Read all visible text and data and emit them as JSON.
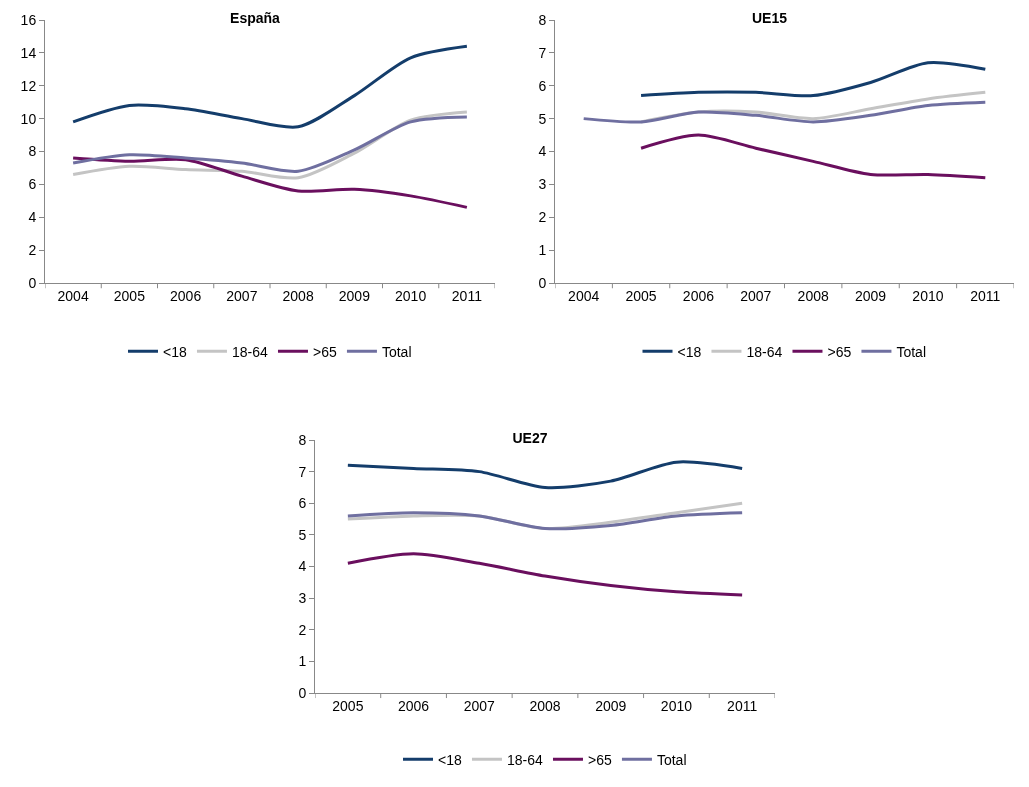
{
  "chart_data": [
    {
      "type": "line",
      "title": "España",
      "categories": [
        "2004",
        "2005",
        "2006",
        "2007",
        "2008",
        "2009",
        "2010",
        "2011"
      ],
      "ylim": [
        0,
        16
      ],
      "yticks": [
        0,
        2,
        4,
        6,
        8,
        10,
        12,
        14,
        16
      ],
      "grid": false,
      "legend": "bottom",
      "marker": "none",
      "line_style": "solid",
      "series": [
        {
          "name": "<18",
          "color": "#143d6b",
          "values": [
            9.8,
            10.8,
            10.6,
            10.0,
            9.5,
            11.4,
            13.7,
            14.4
          ]
        },
        {
          "name": "18-64",
          "color": "#c4c4c4",
          "values": [
            6.6,
            7.1,
            6.9,
            6.8,
            6.4,
            7.9,
            9.9,
            10.4
          ]
        },
        {
          "name": ">65",
          "color": "#6a0f5e",
          "values": [
            7.6,
            7.4,
            7.5,
            6.5,
            5.6,
            5.7,
            5.3,
            4.6
          ]
        },
        {
          "name": "Total",
          "color": "#6f6fa0",
          "values": [
            7.3,
            7.8,
            7.6,
            7.3,
            6.8,
            8.1,
            9.8,
            10.1
          ]
        }
      ]
    },
    {
      "type": "line",
      "title": "UE15",
      "categories": [
        "2004",
        "2005",
        "2006",
        "2007",
        "2008",
        "2009",
        "2010",
        "2011"
      ],
      "ylim": [
        0,
        8
      ],
      "yticks": [
        0,
        1,
        2,
        3,
        4,
        5,
        6,
        7,
        8
      ],
      "grid": false,
      "legend": "bottom",
      "marker": "none",
      "line_style": "solid",
      "series": [
        {
          "name": "<18",
          "color": "#143d6b",
          "values": [
            null,
            5.7,
            5.8,
            5.8,
            5.7,
            6.1,
            6.7,
            6.5
          ]
        },
        {
          "name": "18-64",
          "color": "#c4c4c4",
          "values": [
            null,
            4.9,
            5.2,
            5.2,
            5.0,
            5.3,
            5.6,
            5.8
          ]
        },
        {
          "name": ">65",
          "color": "#6a0f5e",
          "values": [
            null,
            4.1,
            4.5,
            4.1,
            3.7,
            3.3,
            3.3,
            3.2
          ]
        },
        {
          "name": "Total",
          "color": "#6f6fa0",
          "values": [
            5.0,
            4.9,
            5.2,
            5.1,
            4.9,
            5.1,
            5.4,
            5.5
          ]
        }
      ]
    },
    {
      "type": "line",
      "title": "UE27",
      "categories": [
        "2005",
        "2006",
        "2007",
        "2008",
        "2009",
        "2010",
        "2011"
      ],
      "ylim": [
        0,
        8
      ],
      "yticks": [
        0,
        1,
        2,
        3,
        4,
        5,
        6,
        7,
        8
      ],
      "grid": false,
      "legend": "bottom",
      "marker": "none",
      "line_style": "solid",
      "series": [
        {
          "name": "<18",
          "color": "#143d6b",
          "values": [
            7.2,
            7.1,
            7.0,
            6.5,
            6.7,
            7.3,
            7.1
          ]
        },
        {
          "name": "18-64",
          "color": "#c4c4c4",
          "values": [
            5.5,
            5.6,
            5.6,
            5.2,
            5.4,
            5.7,
            6.0
          ]
        },
        {
          "name": ">65",
          "color": "#6a0f5e",
          "values": [
            4.1,
            4.4,
            4.1,
            3.7,
            3.4,
            3.2,
            3.1
          ]
        },
        {
          "name": "Total",
          "color": "#6f6fa0",
          "values": [
            5.6,
            5.7,
            5.6,
            5.2,
            5.3,
            5.6,
            5.7
          ]
        }
      ]
    }
  ]
}
